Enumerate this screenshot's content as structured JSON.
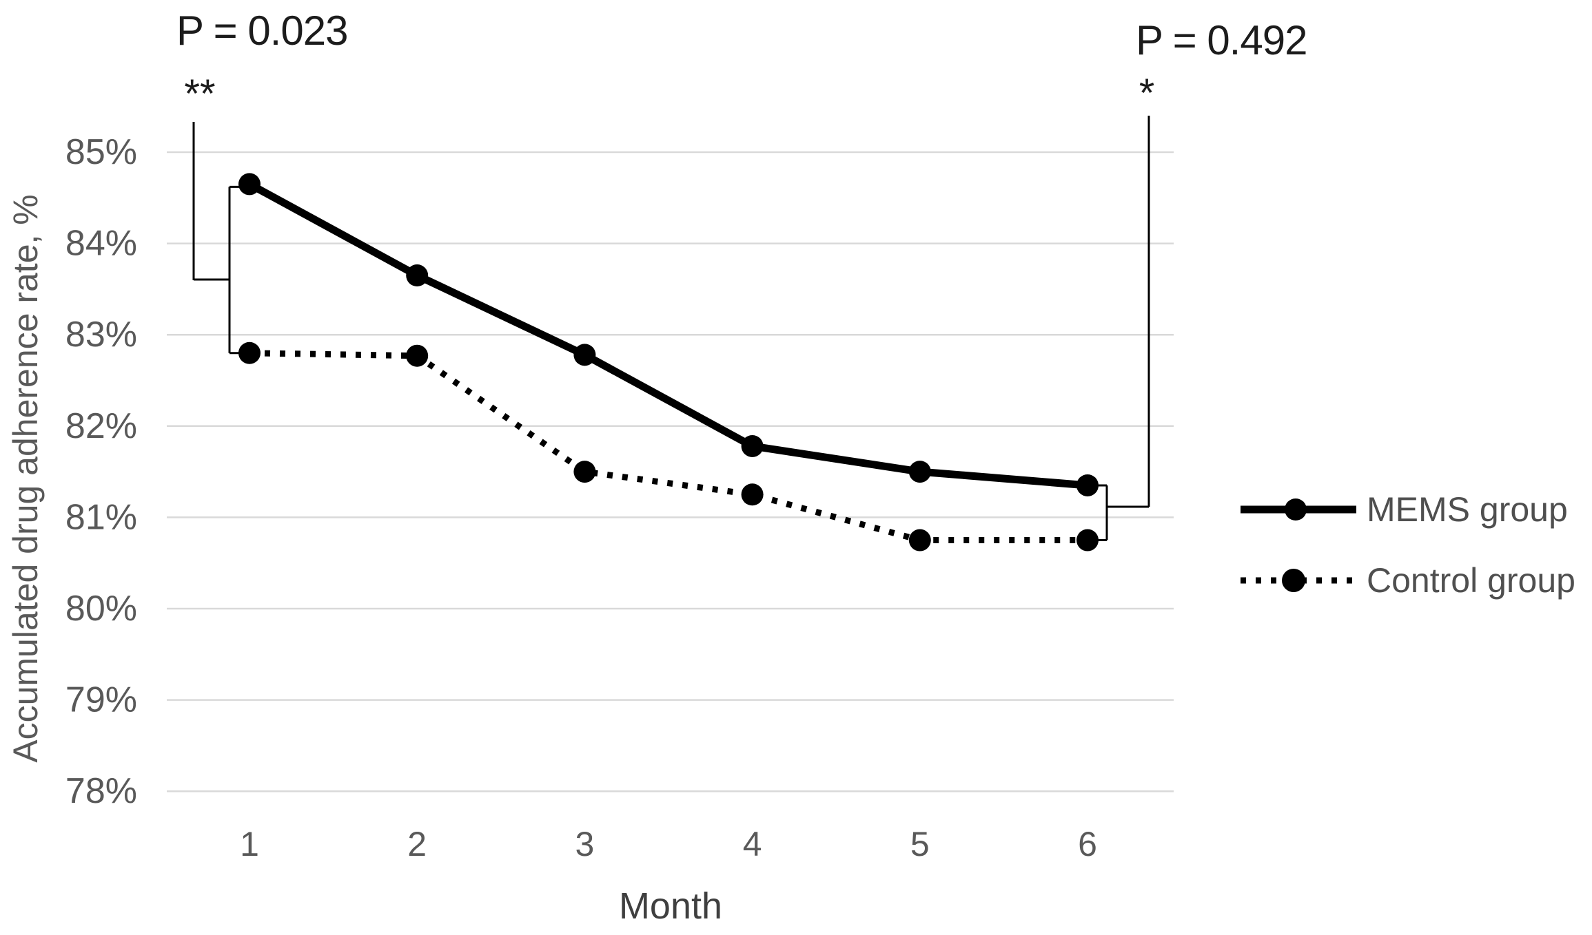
{
  "figure": {
    "background": "#ffffff"
  },
  "annotations": {
    "left_p_label": "P = 0.023",
    "left_stars": "**",
    "right_p_label": "P = 0.492",
    "right_stars": "*"
  },
  "axes": {
    "y_title": "Accumulated drug adherence rate, %",
    "x_title": "Month",
    "y_tick_labels": [
      "85%",
      "84%",
      "83%",
      "82%",
      "81%",
      "80%",
      "79%",
      "78%"
    ],
    "x_tick_labels": [
      "1",
      "2",
      "3",
      "4",
      "5",
      "6"
    ]
  },
  "legend": {
    "items": [
      {
        "label": "MEMS group",
        "line_style": "solid",
        "marker": "filled-circle"
      },
      {
        "label": "Control group",
        "line_style": "dotted",
        "marker": "filled-circle"
      }
    ]
  },
  "colors": {
    "series": "#000000",
    "gridline": "#d9d9d9",
    "tick_text": "#595959",
    "x_title_text": "#3f3f3f",
    "annotation_text": "#1c1c1c",
    "legend_text": "#4f4f4f"
  },
  "chart_data": {
    "type": "line",
    "title": "",
    "x": [
      1,
      2,
      3,
      4,
      5,
      6
    ],
    "xlabel": "Month",
    "ylabel": "Accumulated drug adherence rate, %",
    "ytick_values": [
      85,
      84,
      83,
      82,
      81,
      80,
      79,
      78
    ],
    "ytick_labels": [
      "85%",
      "84%",
      "83%",
      "82%",
      "81%",
      "80%",
      "79%",
      "78%"
    ],
    "ylim": [
      77.6,
      85.6
    ],
    "grid": true,
    "legend_position": "right",
    "series": [
      {
        "name": "MEMS group",
        "line_style": "solid",
        "marker": "filled-circle",
        "color": "#000000",
        "values": [
          84.65,
          83.65,
          82.78,
          81.78,
          81.5,
          81.35
        ]
      },
      {
        "name": "Control group",
        "line_style": "dotted",
        "marker": "filled-circle",
        "color": "#000000",
        "values": [
          82.8,
          82.77,
          81.5,
          81.25,
          80.75,
          80.75
        ]
      }
    ],
    "significance_brackets": [
      {
        "at_month": 1,
        "p_text": "P = 0.023",
        "stars": "**",
        "compares": [
          "MEMS group",
          "Control group"
        ]
      },
      {
        "at_month": 6,
        "p_text": "P = 0.492",
        "stars": "*",
        "compares": [
          "MEMS group",
          "Control group"
        ]
      }
    ]
  }
}
